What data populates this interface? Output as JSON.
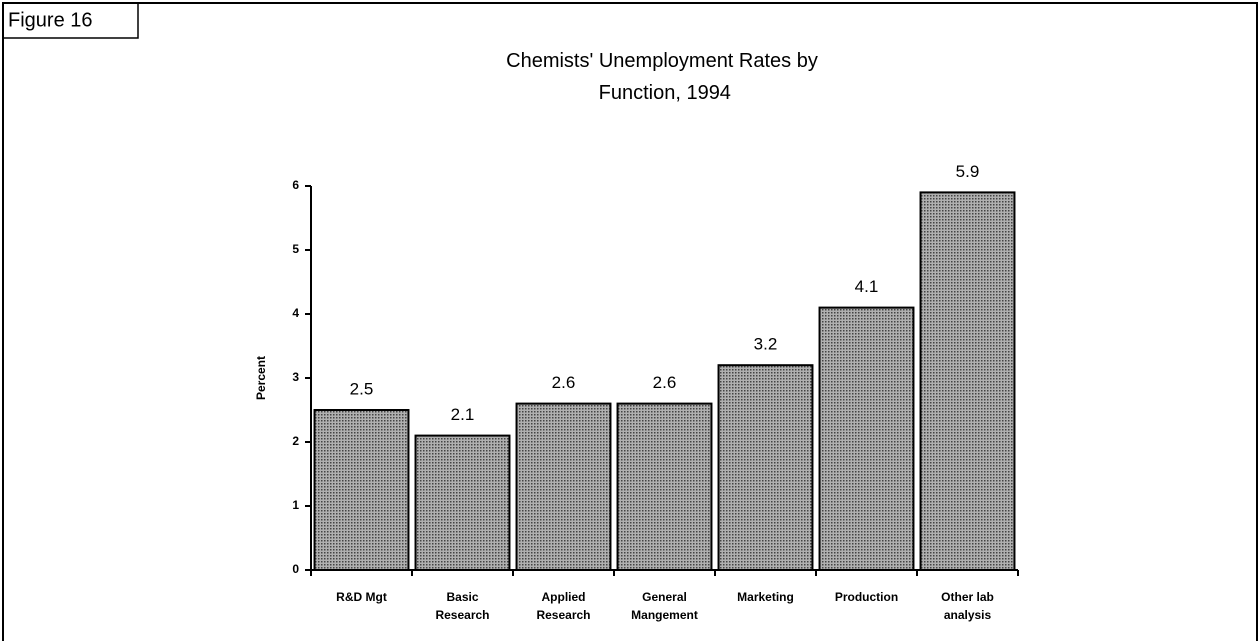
{
  "figure_label": "Figure 16",
  "chart_data": {
    "type": "bar",
    "title": "Chemists' Unemployment Rates by\nFunction, 1994",
    "y_label": "Percent",
    "categories": [
      "R&D Mgt",
      "Basic\nResearch",
      "Applied\nResearch",
      "General\nMangement",
      "Marketing",
      "Production",
      "Other lab\nanalysis"
    ],
    "values": [
      2.5,
      2.1,
      2.6,
      2.6,
      3.2,
      4.1,
      5.9
    ],
    "color": "#8c8c8c",
    "ylim": [
      0,
      6
    ],
    "yticks": [
      0,
      1,
      2,
      3,
      4,
      5,
      6
    ],
    "grid": false
  }
}
